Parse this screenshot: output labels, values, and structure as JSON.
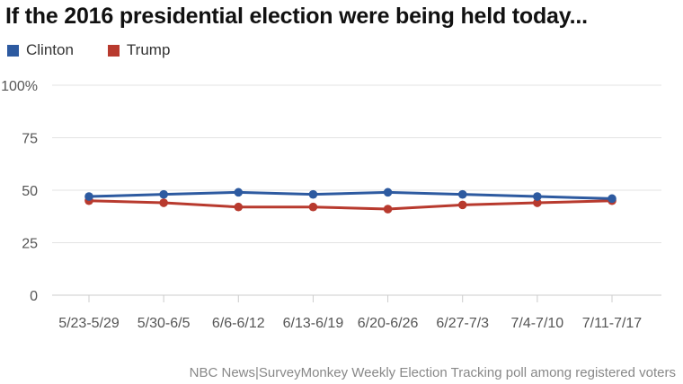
{
  "title": "If the 2016 presidential election were being held today...",
  "source": "NBC News|SurveyMonkey Weekly Election Tracking poll among registered voters",
  "chart_data": {
    "type": "line",
    "categories": [
      "5/23-5/29",
      "5/30-6/5",
      "6/6-6/12",
      "6/13-6/19",
      "6/20-6/26",
      "6/27-7/3",
      "7/4-7/10",
      "7/11-7/17"
    ],
    "series": [
      {
        "name": "Clinton",
        "color": "#2d5aa0",
        "values": [
          47,
          48,
          49,
          48,
          49,
          48,
          47,
          46
        ]
      },
      {
        "name": "Trump",
        "color": "#b83a2e",
        "values": [
          45,
          44,
          42,
          42,
          41,
          43,
          44,
          45
        ]
      }
    ],
    "yticks": [
      "100%",
      "75",
      "50",
      "25",
      "0"
    ],
    "ylim": [
      0,
      100
    ],
    "grid": true,
    "legend_position": "top-left"
  }
}
